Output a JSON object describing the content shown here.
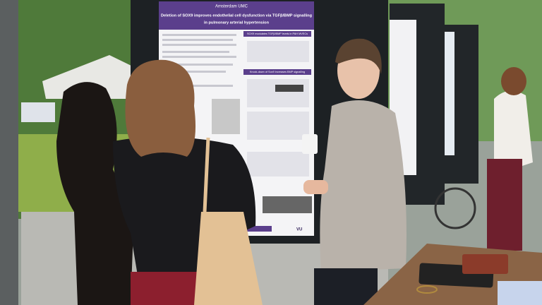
{
  "poster": {
    "logo": "Amsterdam UMC",
    "title_lines": [
      "Deletion of SOX9 improves endothelial cell dysfunction via TGFβ/BMP signalling",
      "in pulmonary arterial hypertension"
    ],
    "sections": [
      "SOX9 modulates TGFβ/BMP levels in PAH MVECs",
      "Knock-down of Sox9 increases BMP signalling"
    ],
    "footer": "VU"
  }
}
